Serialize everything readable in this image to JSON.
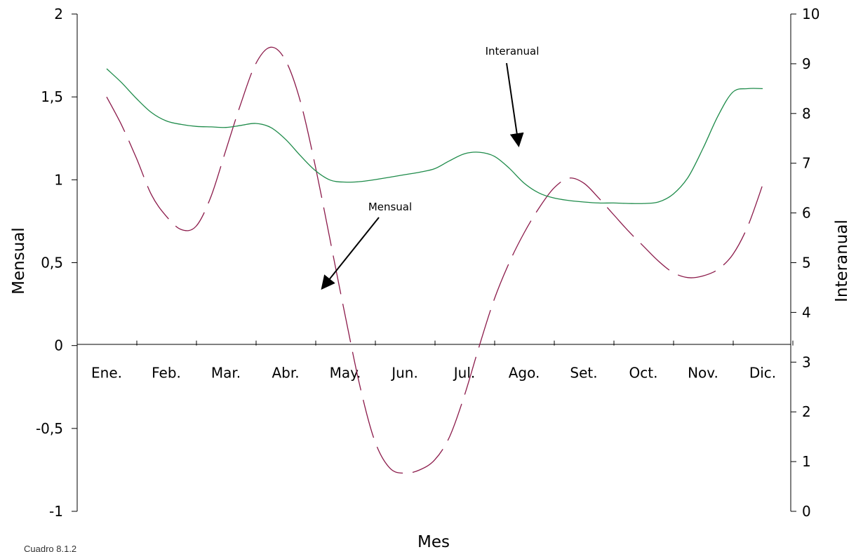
{
  "chart_data": {
    "type": "line",
    "categories": [
      "Ene.",
      "Feb.",
      "Mar.",
      "Abr.",
      "May.",
      "Jun.",
      "Jul.",
      "Ago.",
      "Set.",
      "Oct.",
      "Nov.",
      "Dic."
    ],
    "xlabel": "Mes",
    "ylabel_left": "Mensual",
    "ylabel_right": "Interanual",
    "ylim_left": [
      -1,
      2
    ],
    "yticks_left": [
      -1,
      -0.5,
      0,
      0.5,
      1,
      1.5,
      2
    ],
    "ytick_labels_left": [
      "-1",
      "-0,5",
      "0",
      "0,5",
      "1",
      "1,5",
      "2"
    ],
    "ylim_right": [
      0,
      10
    ],
    "yticks_right": [
      0,
      1,
      2,
      3,
      4,
      5,
      6,
      7,
      8,
      9,
      10
    ],
    "ytick_labels_right": [
      "0",
      "1",
      "2",
      "3",
      "4",
      "5",
      "6",
      "7",
      "8",
      "9",
      "10"
    ],
    "grid": false,
    "series": [
      {
        "name": "Mensual",
        "axis": "left",
        "style": "dashed",
        "color": "#8B1A4A",
        "x": [
          0,
          0.25,
          0.5,
          0.75,
          1,
          1.25,
          1.5,
          1.75,
          2,
          2.25,
          2.5,
          2.75,
          3,
          3.25,
          3.5,
          3.75,
          4,
          4.25,
          4.5,
          4.75,
          5,
          5.25,
          5.5,
          5.75,
          6,
          6.25,
          6.5,
          6.75,
          7,
          7.25,
          7.5,
          7.75,
          8,
          8.25,
          8.5,
          8.75,
          9,
          9.25,
          9.5,
          9.75,
          10,
          10.25,
          10.5,
          10.75,
          11
        ],
        "values": [
          1.5,
          1.33,
          1.13,
          0.91,
          0.78,
          0.7,
          0.72,
          0.9,
          1.18,
          1.46,
          1.7,
          1.8,
          1.72,
          1.47,
          1.08,
          0.63,
          0.18,
          -0.25,
          -0.58,
          -0.74,
          -0.77,
          -0.75,
          -0.69,
          -0.55,
          -0.3,
          0.0,
          0.28,
          0.5,
          0.68,
          0.83,
          0.95,
          1.01,
          0.98,
          0.89,
          0.79,
          0.69,
          0.6,
          0.51,
          0.44,
          0.41,
          0.42,
          0.46,
          0.55,
          0.72,
          0.97
        ]
      },
      {
        "name": "Interanual",
        "axis": "right",
        "style": "solid",
        "color": "#1E8B4A",
        "x": [
          0,
          0.25,
          0.5,
          0.75,
          1,
          1.25,
          1.5,
          1.75,
          2,
          2.25,
          2.5,
          2.75,
          3,
          3.25,
          3.5,
          3.75,
          4,
          4.25,
          4.5,
          4.75,
          5,
          5.25,
          5.5,
          5.75,
          6,
          6.25,
          6.5,
          6.75,
          7,
          7.25,
          7.5,
          7.75,
          8,
          8.25,
          8.5,
          8.75,
          9,
          9.25,
          9.5,
          9.75,
          10,
          10.25,
          10.5,
          10.75,
          11
        ],
        "values": [
          8.9,
          8.62,
          8.3,
          8.02,
          7.85,
          7.78,
          7.74,
          7.73,
          7.72,
          7.76,
          7.8,
          7.72,
          7.48,
          7.15,
          6.85,
          6.66,
          6.62,
          6.63,
          6.67,
          6.72,
          6.77,
          6.82,
          6.89,
          7.05,
          7.19,
          7.22,
          7.14,
          6.9,
          6.6,
          6.4,
          6.3,
          6.25,
          6.22,
          6.2,
          6.2,
          6.19,
          6.19,
          6.22,
          6.38,
          6.72,
          7.3,
          7.95,
          8.43,
          8.5,
          8.5
        ]
      }
    ],
    "annotations": [
      {
        "text": "Interanual",
        "target_series": "Interanual",
        "target_x": 7.0
      },
      {
        "text": "Mensual",
        "target_series": "Mensual",
        "target_x": 3.8
      }
    ],
    "caption": "Cuadro 8.1.2"
  }
}
